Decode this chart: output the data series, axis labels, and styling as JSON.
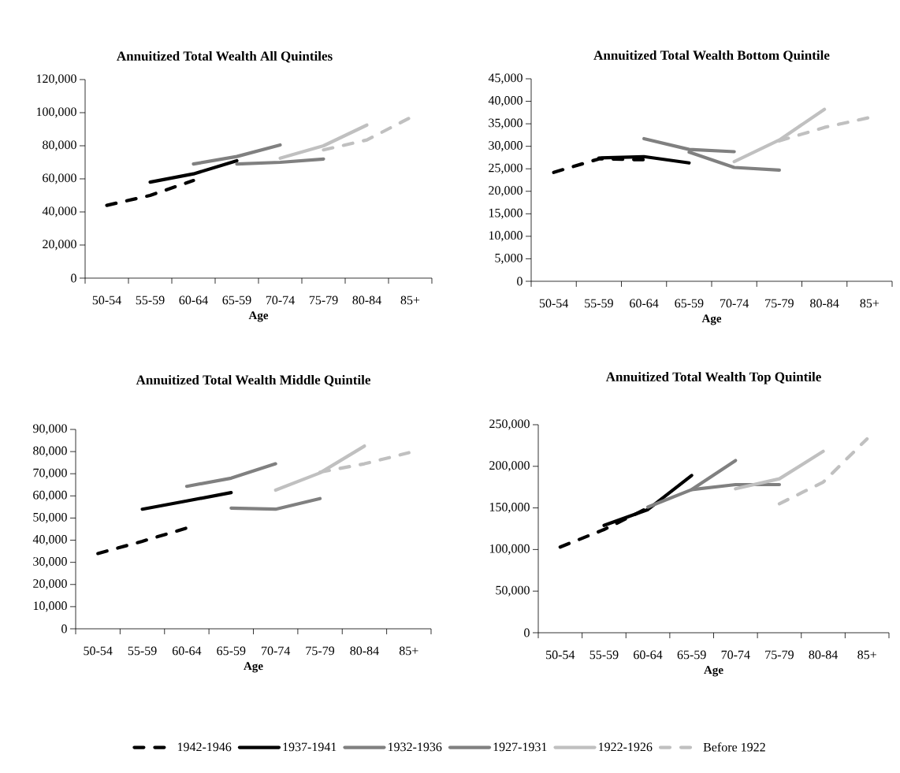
{
  "chart_data": [
    {
      "type": "line",
      "title": "Annuitized Total Wealth All Quintiles",
      "xlabel": "Age",
      "categories": [
        "50-54",
        "55-59",
        "60-64",
        "65-59",
        "70-74",
        "75-79",
        "80-84",
        "85+"
      ],
      "ylim": [
        0,
        120000
      ],
      "yticks": [
        0,
        {
          "value": 20000,
          "label": "20,000"
        },
        {
          "value": 40000,
          "label": "40,000"
        },
        {
          "value": 60000,
          "label": "60,000"
        },
        {
          "value": 80000,
          "label": "80,000"
        },
        {
          "value": 100000,
          "label": "100,000"
        },
        {
          "value": 120000,
          "label": "120,000"
        }
      ],
      "series": [
        {
          "color": "#000000",
          "line_style": "dashed",
          "values": [
            44000,
            50000,
            59000,
            null,
            null,
            null,
            null,
            null
          ]
        },
        {
          "color": "#000000",
          "line_style": "solid",
          "values": [
            null,
            58000,
            63000,
            71000,
            null,
            null,
            null,
            null
          ]
        },
        {
          "color": "#808080",
          "line_style": "solid",
          "values": [
            null,
            null,
            69000,
            73500,
            80500,
            null,
            null,
            null
          ]
        },
        {
          "color": "#808080",
          "line_style": "solid",
          "values": [
            null,
            null,
            null,
            69000,
            70000,
            72000,
            null,
            null
          ]
        },
        {
          "color": "#c0c0c0",
          "line_style": "solid",
          "values": [
            null,
            null,
            null,
            null,
            72500,
            80000,
            92500,
            null
          ]
        },
        {
          "color": "#c0c0c0",
          "line_style": "dashed",
          "values": [
            null,
            null,
            null,
            null,
            null,
            77500,
            83500,
            97000
          ]
        }
      ]
    },
    {
      "type": "line",
      "title": "Annuitized Total Wealth Bottom Quintile",
      "xlabel": "Age",
      "categories": [
        "50-54",
        "55-59",
        "60-64",
        "65-59",
        "70-74",
        "75-79",
        "80-84",
        "85+"
      ],
      "ylim": [
        0,
        45000
      ],
      "yticks": [
        0,
        {
          "value": 5000,
          "label": "5,000"
        },
        {
          "value": 10000,
          "label": "10,000"
        },
        {
          "value": 15000,
          "label": "15,000"
        },
        {
          "value": 20000,
          "label": "20,000"
        },
        {
          "value": 25000,
          "label": "25,000"
        },
        {
          "value": 30000,
          "label": "30,000"
        },
        {
          "value": 35000,
          "label": "35,000"
        },
        {
          "value": 40000,
          "label": "40,000"
        },
        {
          "value": 45000,
          "label": "45,000"
        }
      ],
      "series": [
        {
          "color": "#000000",
          "line_style": "dashed",
          "values": [
            24200,
            27200,
            27000,
            null,
            null,
            null,
            null,
            null
          ]
        },
        {
          "color": "#000000",
          "line_style": "solid",
          "values": [
            null,
            27400,
            27700,
            26300,
            null,
            null,
            null,
            null
          ]
        },
        {
          "color": "#808080",
          "line_style": "solid",
          "values": [
            null,
            null,
            31700,
            29300,
            28800,
            null,
            null,
            null
          ]
        },
        {
          "color": "#808080",
          "line_style": "solid",
          "values": [
            null,
            null,
            null,
            28700,
            25300,
            24700,
            null,
            null
          ]
        },
        {
          "color": "#c0c0c0",
          "line_style": "solid",
          "values": [
            null,
            null,
            null,
            null,
            26600,
            31400,
            38200,
            null
          ]
        },
        {
          "color": "#c0c0c0",
          "line_style": "dashed",
          "values": [
            null,
            null,
            null,
            null,
            null,
            31200,
            34200,
            36400
          ]
        }
      ]
    },
    {
      "type": "line",
      "title": "Annuitized Total Wealth Middle Quintile",
      "xlabel": "Age",
      "categories": [
        "50-54",
        "55-59",
        "60-64",
        "65-59",
        "70-74",
        "75-79",
        "80-84",
        "85+"
      ],
      "ylim": [
        0,
        90000
      ],
      "yticks": [
        0,
        {
          "value": 10000,
          "label": "10,000"
        },
        {
          "value": 20000,
          "label": "20,000"
        },
        {
          "value": 30000,
          "label": "30,000"
        },
        {
          "value": 40000,
          "label": "40,000"
        },
        {
          "value": 50000,
          "label": "50,000"
        },
        {
          "value": 60000,
          "label": "60,000"
        },
        {
          "value": 70000,
          "label": "70,000"
        },
        {
          "value": 80000,
          "label": "80,000"
        },
        {
          "value": 90000,
          "label": "90,000"
        }
      ],
      "series": [
        {
          "color": "#000000",
          "line_style": "dashed",
          "values": [
            34000,
            39500,
            45500,
            null,
            null,
            null,
            null,
            null
          ]
        },
        {
          "color": "#000000",
          "line_style": "solid",
          "values": [
            null,
            54000,
            57700,
            61500,
            null,
            null,
            null,
            null
          ]
        },
        {
          "color": "#808080",
          "line_style": "solid",
          "values": [
            null,
            null,
            64300,
            68000,
            74500,
            null,
            null,
            null
          ]
        },
        {
          "color": "#808080",
          "line_style": "solid",
          "values": [
            null,
            null,
            null,
            54500,
            54000,
            58800,
            null,
            null
          ]
        },
        {
          "color": "#c0c0c0",
          "line_style": "solid",
          "values": [
            null,
            null,
            null,
            null,
            62600,
            70400,
            82500,
            null
          ]
        },
        {
          "color": "#c0c0c0",
          "line_style": "dashed",
          "values": [
            null,
            null,
            null,
            null,
            null,
            70700,
            74500,
            79500
          ]
        }
      ]
    },
    {
      "type": "line",
      "title": "Annuitized Total Wealth Top Quintile",
      "xlabel": "Age",
      "categories": [
        "50-54",
        "55-59",
        "60-64",
        "65-59",
        "70-74",
        "75-79",
        "80-84",
        "85+"
      ],
      "ylim": [
        0,
        250000
      ],
      "yticks": [
        0,
        {
          "value": 50000,
          "label": "50,000"
        },
        {
          "value": 100000,
          "label": "100,000"
        },
        {
          "value": 150000,
          "label": "150,000"
        },
        {
          "value": 200000,
          "label": "200,000"
        },
        {
          "value": 250000,
          "label": "250,000"
        }
      ],
      "legend": "bottom",
      "series": [
        {
          "name": "1942-1946",
          "color": "#000000",
          "line_style": "dashed",
          "values": [
            103000,
            124000,
            150000,
            null,
            null,
            null,
            null,
            null
          ]
        },
        {
          "name": "1937-1941",
          "color": "#000000",
          "line_style": "solid",
          "values": [
            null,
            129000,
            148000,
            189000,
            null,
            null,
            null,
            null
          ]
        },
        {
          "name": "1932-1936",
          "color": "#808080",
          "line_style": "solid",
          "values": [
            null,
            null,
            151000,
            172000,
            207000,
            null,
            null,
            null
          ]
        },
        {
          "name": "1927-1931",
          "color": "#808080",
          "line_style": "solid",
          "values": [
            null,
            null,
            null,
            172000,
            178000,
            178000,
            null,
            null
          ]
        },
        {
          "name": "1922-1926",
          "color": "#c0c0c0",
          "line_style": "solid",
          "values": [
            null,
            null,
            null,
            null,
            173000,
            185000,
            218000,
            null
          ]
        },
        {
          "name": "Before 1922",
          "color": "#c0c0c0",
          "line_style": "dashed",
          "values": [
            null,
            null,
            null,
            null,
            null,
            155000,
            181000,
            233000
          ]
        }
      ]
    }
  ]
}
